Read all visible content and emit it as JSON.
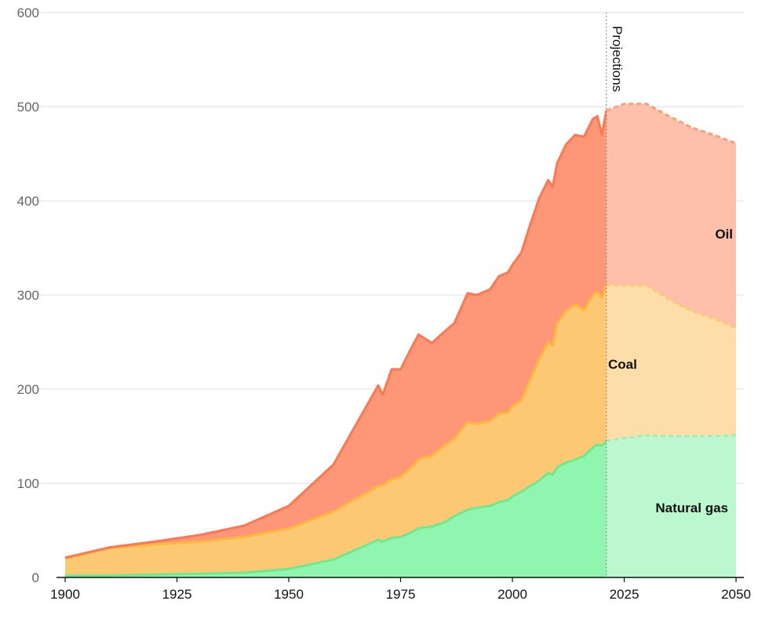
{
  "chart_data": {
    "type": "area",
    "stacked": true,
    "title": "",
    "xlabel": "",
    "ylabel": "",
    "xlim": [
      1900,
      2050
    ],
    "ylim": [
      0,
      600
    ],
    "x_ticks": [
      "1900",
      "1925",
      "1950",
      "1975",
      "2000",
      "2025",
      "2050"
    ],
    "y_ticks": [
      "0",
      "100",
      "200",
      "300",
      "400",
      "500",
      "600"
    ],
    "grid": "horizontal",
    "projection_label": "Projections",
    "projection_start": 2021,
    "historical": {
      "x": [
        1900,
        1910,
        1920,
        1930,
        1940,
        1950,
        1960,
        1970,
        1971,
        1973,
        1975,
        1977,
        1979,
        1980,
        1982,
        1985,
        1987,
        1990,
        1992,
        1995,
        1997,
        1999,
        2000,
        2002,
        2004,
        2006,
        2008,
        2009,
        2010,
        2012,
        2014,
        2016,
        2018,
        2019,
        2020,
        2021
      ],
      "series": [
        {
          "name": "Natural gas",
          "values": [
            2,
            2,
            3,
            4,
            5,
            9,
            19,
            40,
            38,
            42,
            43,
            47,
            52,
            53,
            54,
            59,
            65,
            72,
            74,
            76,
            80,
            82,
            86,
            91,
            97,
            103,
            111,
            109,
            117,
            122,
            125,
            129,
            138,
            141,
            140,
            145
          ]
        },
        {
          "name": "Coal",
          "values": [
            18,
            29,
            32,
            34,
            38,
            43,
            51,
            57,
            60,
            62,
            64,
            68,
            73,
            74,
            75,
            82,
            82,
            93,
            89,
            90,
            94,
            93,
            96,
            97,
            113,
            129,
            139,
            137,
            153,
            161,
            165,
            155,
            162,
            162,
            157,
            166
          ]
        },
        {
          "name": "Oil",
          "values": [
            1,
            1,
            3,
            7,
            12,
            24,
            50,
            107,
            96,
            117,
            114,
            125,
            133,
            128,
            120,
            121,
            123,
            137,
            137,
            140,
            146,
            149,
            150,
            157,
            165,
            171,
            172,
            169,
            170,
            177,
            180,
            184,
            187,
            187,
            173,
            185
          ]
        }
      ]
    },
    "projected": {
      "x": [
        2021,
        2025,
        2030,
        2035,
        2040,
        2045,
        2050
      ],
      "series": [
        {
          "name": "Natural gas",
          "values": [
            145,
            148,
            151,
            150,
            150,
            150,
            151
          ]
        },
        {
          "name": "Coal",
          "values": [
            166,
            162,
            159,
            145,
            133,
            125,
            114
          ]
        },
        {
          "name": "Oil",
          "values": [
            185,
            193,
            193,
            195,
            195,
            195,
            196
          ]
        }
      ]
    },
    "colors": {
      "Natural gas": {
        "fill": "#90f5ae",
        "line": "#6ee891",
        "proj_fill": "#bbf8cf",
        "proj_line": "#9cefb6"
      },
      "Coal": {
        "fill": "#fdc873",
        "line": "#fcb73c",
        "proj_fill": "#fddea8",
        "proj_line": "#fcc973"
      },
      "Oil": {
        "fill": "#fe9777",
        "line": "#fb7850",
        "proj_fill": "#febfab",
        "proj_line": "#fd9d80"
      }
    },
    "labels": {
      "oil": "Oil",
      "coal": "Coal",
      "gas": "Natural gas"
    }
  }
}
